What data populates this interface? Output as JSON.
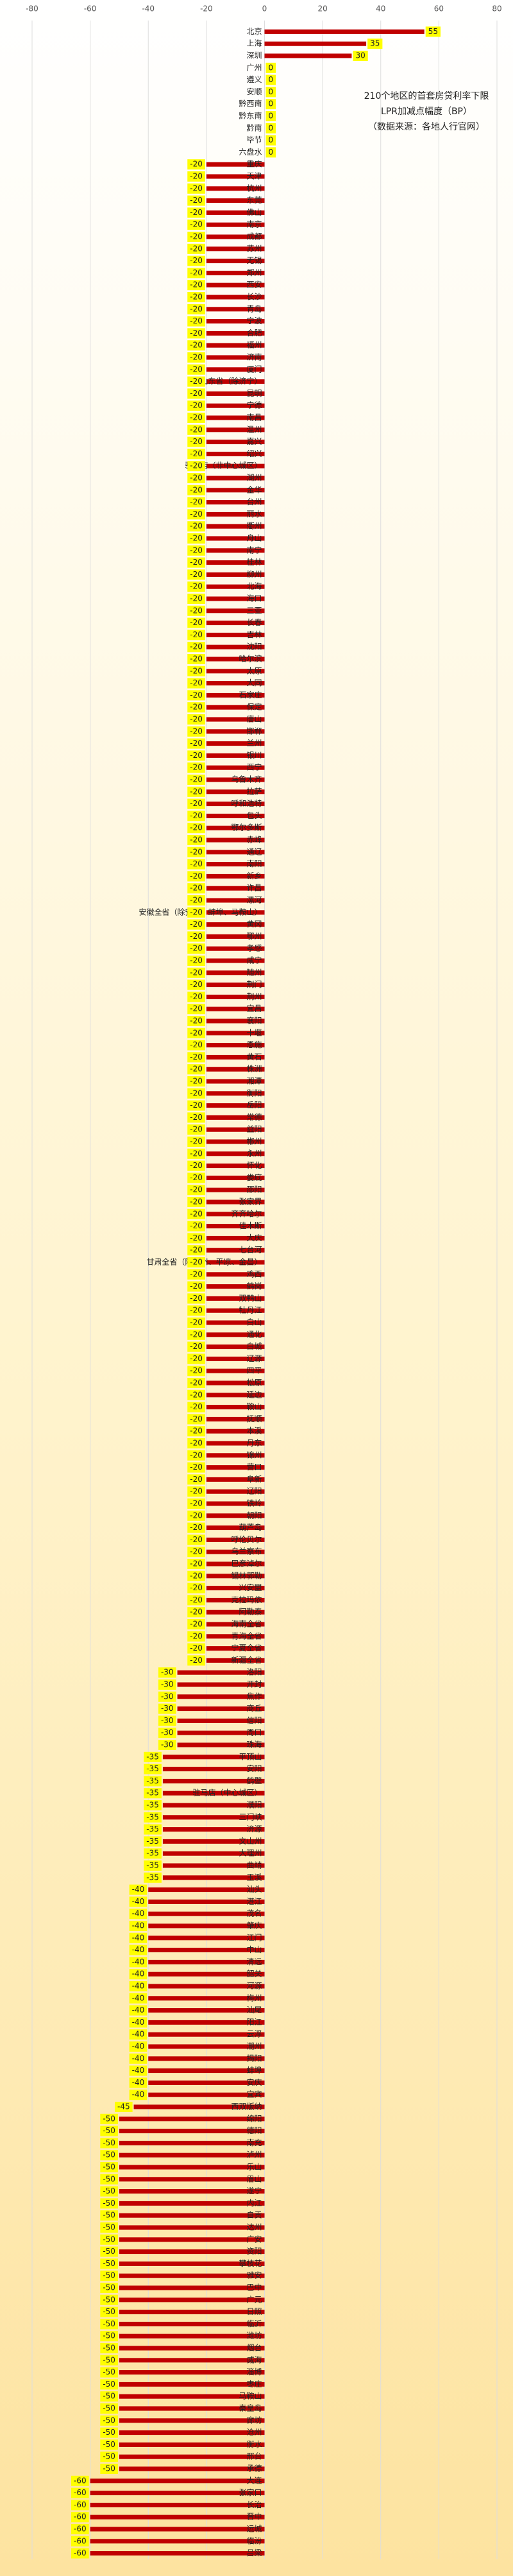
{
  "chart_data": {
    "type": "bar",
    "orientation": "horizontal",
    "title": "210个地区的首套房贷利率下限",
    "subtitle": "LPR加减点幅度（BP）",
    "note": "（数据来源：各地人行官网）",
    "color": "#c00000",
    "label_color": "#ffff00",
    "grid": true,
    "xlim": [
      -80,
      80
    ],
    "xticks": [
      -80,
      -60,
      -40,
      -20,
      0,
      20,
      40,
      60,
      80
    ],
    "categories": [
      "北京",
      "上海",
      "深圳",
      "广州",
      "遵义",
      "安顺",
      "黔西南",
      "黔东南",
      "黔南",
      "毕节",
      "六盘水",
      "重庆",
      "天津",
      "杭州",
      "东莞",
      "佛山",
      "南京",
      "成都",
      "苏州",
      "无锡",
      "郑州",
      "西安",
      "长沙",
      "青岛",
      "宁波",
      "合肥",
      "福州",
      "济南",
      "厦门",
      "山东省（除济宁）",
      "昆明",
      "宁德",
      "南昌",
      "温州",
      "嘉兴",
      "绍兴",
      "驻马店（非中心城区）",
      "湖州",
      "金华",
      "台州",
      "丽水",
      "衢州",
      "舟山",
      "南宁",
      "桂林",
      "柳州",
      "北海",
      "海口",
      "三亚",
      "长春",
      "吉林",
      "沈阳",
      "哈尔滨",
      "太原",
      "大同",
      "石家庄",
      "保定",
      "唐山",
      "邯郸",
      "兰州",
      "银川",
      "西宁",
      "乌鲁木齐",
      "拉萨",
      "呼和浩特",
      "包头",
      "鄂尔多斯",
      "赤峰",
      "通辽",
      "南阳",
      "新乡",
      "许昌",
      "漯河",
      "安徽全省（除安庆、蚌埠、马鞍山）",
      "黄冈",
      "鄂州",
      "孝感",
      "咸宁",
      "随州",
      "荆门",
      "荆州",
      "宜昌",
      "襄阳",
      "十堰",
      "恩施",
      "黄石",
      "株洲",
      "湘潭",
      "衡阳",
      "岳阳",
      "常德",
      "益阳",
      "郴州",
      "永州",
      "怀化",
      "娄底",
      "邵阳",
      "张家界",
      "齐齐哈尔",
      "佳木斯",
      "大庆",
      "七台河",
      "甘肃全省（除兰州、平凉、金昌）",
      "鸡西",
      "鹤岗",
      "双鸭山",
      "牡丹江",
      "白山",
      "通化",
      "白城",
      "辽源",
      "四平",
      "松原",
      "延边",
      "鞍山",
      "抚顺",
      "本溪",
      "丹东",
      "锦州",
      "营口",
      "阜新",
      "辽阳",
      "铁岭",
      "朝阳",
      "葫芦岛",
      "呼伦贝尔",
      "乌兰察布",
      "巴彦淖尔",
      "锡林郭勒",
      "兴安盟",
      "克拉玛依",
      "阿勒泰",
      "海南全省",
      "青海全省",
      "宁夏全省",
      "新疆全省",
      "洛阳",
      "开封",
      "焦作",
      "商丘",
      "信阳",
      "周口",
      "珠海",
      "平顶山",
      "安阳",
      "鹤壁",
      "驻马店（中心城区）",
      "濮阳",
      "三门峡",
      "济源",
      "文山州",
      "大理州",
      "曲靖",
      "玉溪",
      "汕头",
      "湛江",
      "茂名",
      "肇庆",
      "江门",
      "中山",
      "清远",
      "韶关",
      "河源",
      "梅州",
      "汕尾",
      "阳江",
      "云浮",
      "潮州",
      "揭阳",
      "蚌埠",
      "安庆",
      "宜宾",
      "西双版纳",
      "绵阳",
      "德阳",
      "南充",
      "泸州",
      "乐山",
      "眉山",
      "遂宁",
      "内江",
      "自贡",
      "达州",
      "广安",
      "资阳",
      "攀枝花",
      "雅安",
      "巴中",
      "广元",
      "日照",
      "临沂",
      "潍坊",
      "烟台",
      "威海",
      "淄博",
      "枣庄",
      "马鞍山",
      "秦皇岛",
      "廊坊",
      "沧州",
      "衡水",
      "邢台",
      "承德",
      "大连",
      "张家口",
      "长治",
      "晋中",
      "运城",
      "临汾",
      "吕梁"
    ],
    "values": [
      55,
      35,
      30,
      0,
      0,
      0,
      0,
      0,
      0,
      0,
      0,
      -20,
      -20,
      -20,
      -20,
      -20,
      -20,
      -20,
      -20,
      -20,
      -20,
      -20,
      -20,
      -20,
      -20,
      -20,
      -20,
      -20,
      -20,
      -20,
      -20,
      -20,
      -20,
      -20,
      -20,
      -20,
      -20,
      -20,
      -20,
      -20,
      -20,
      -20,
      -20,
      -20,
      -20,
      -20,
      -20,
      -20,
      -20,
      -20,
      -20,
      -20,
      -20,
      -20,
      -20,
      -20,
      -20,
      -20,
      -20,
      -20,
      -20,
      -20,
      -20,
      -20,
      -20,
      -20,
      -20,
      -20,
      -20,
      -20,
      -20,
      -20,
      -20,
      -20,
      -20,
      -20,
      -20,
      -20,
      -20,
      -20,
      -20,
      -20,
      -20,
      -20,
      -20,
      -20,
      -20,
      -20,
      -20,
      -20,
      -20,
      -20,
      -20,
      -20,
      -20,
      -20,
      -20,
      -20,
      -20,
      -20,
      -20,
      -20,
      -20,
      -20,
      -20,
      -20,
      -20,
      -20,
      -20,
      -20,
      -20,
      -20,
      -20,
      -20,
      -20,
      -20,
      -20,
      -20,
      -20,
      -20,
      -20,
      -20,
      -20,
      -20,
      -20,
      -20,
      -20,
      -20,
      -20,
      -20,
      -20,
      -20,
      -20,
      -20,
      -20,
      -20,
      -30,
      -30,
      -30,
      -30,
      -30,
      -30,
      -30,
      -35,
      -35,
      -35,
      -35,
      -35,
      -35,
      -35,
      -35,
      -35,
      -35,
      -35,
      -40,
      -40,
      -40,
      -40,
      -40,
      -40,
      -40,
      -40,
      -40,
      -40,
      -40,
      -40,
      -40,
      -40,
      -40,
      -40,
      -40,
      -40,
      -45,
      -50,
      -50,
      -50,
      -50,
      -50,
      -50,
      -50,
      -50,
      -50,
      -50,
      -50,
      -50,
      -50,
      -50,
      -50,
      -50,
      -50,
      -50,
      -50,
      -50,
      -50,
      -50,
      -50,
      -50,
      -50,
      -50,
      -50,
      -50,
      -50,
      -50,
      -60,
      -60,
      -60,
      -60,
      -60,
      -60,
      -60
    ]
  }
}
